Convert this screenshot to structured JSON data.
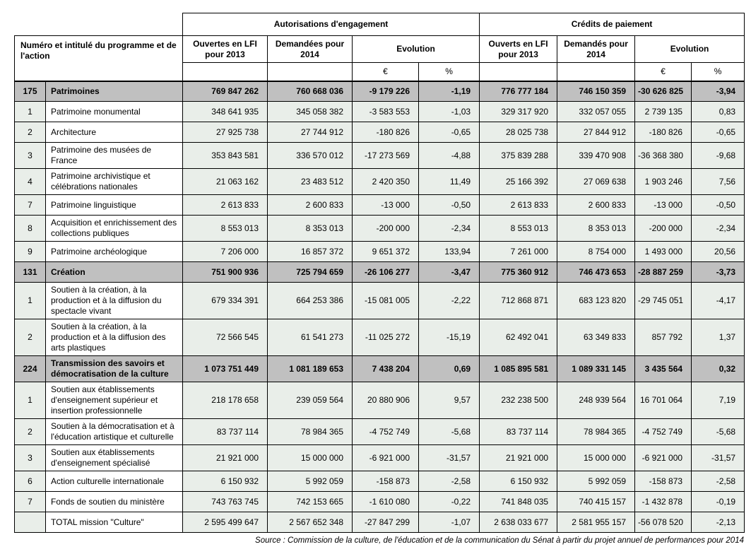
{
  "table": {
    "header": {
      "program_col": "Numéro et intitulé du programme et de l'action",
      "group_ae": "Autorisations d'engagement",
      "group_cp": "Crédits de paiement",
      "ae_lfi": "Ouvertes en LFI pour 2013",
      "ae_dem": "Demandées pour 2014",
      "ae_evo": "Evolution",
      "cp_lfi": "Ouverts en LFI pour 2013",
      "cp_dem": "Demandés pour 2014",
      "cp_evo": "Evolution",
      "euro": "€",
      "percent": "%"
    },
    "colors": {
      "program_row_bg": "#c0c0c0",
      "value_cell_bg": "#e9eee9",
      "border": "#000000"
    },
    "rows": [
      {
        "num": "175",
        "label": "Patrimoines",
        "type": "program",
        "values": [
          "769 847 262",
          "760 668 036",
          "-9 179 226",
          "-1,19",
          "776 777 184",
          "746 150 359",
          "-30 626 825",
          "-3,94"
        ]
      },
      {
        "num": "1",
        "label": "Patrimoine monumental",
        "type": "action",
        "values": [
          "348 641 935",
          "345 058 382",
          "-3 583 553",
          "-1,03",
          "329 317 920",
          "332 057 055",
          "2 739 135",
          "0,83"
        ]
      },
      {
        "num": "2",
        "label": "Architecture",
        "type": "action",
        "values": [
          "27 925 738",
          "27 744 912",
          "-180 826",
          "-0,65",
          "28 025 738",
          "27 844 912",
          "-180 826",
          "-0,65"
        ]
      },
      {
        "num": "3",
        "label": "Patrimoine des musées de France",
        "type": "action",
        "values": [
          "353 843 581",
          "336 570 012",
          "-17 273 569",
          "-4,88",
          "375 839 288",
          "339 470 908",
          "-36 368 380",
          "-9,68"
        ]
      },
      {
        "num": "4",
        "label": "Patrimoine archivistique et célébrations nationales",
        "type": "action",
        "values": [
          "21 063 162",
          "23 483 512",
          "2 420 350",
          "11,49",
          "25 166 392",
          "27 069 638",
          "1 903 246",
          "7,56"
        ]
      },
      {
        "num": "7",
        "label": "Patrimoine linguistique",
        "type": "action",
        "values": [
          "2 613 833",
          "2 600 833",
          "-13 000",
          "-0,50",
          "2 613 833",
          "2 600 833",
          "-13 000",
          "-0,50"
        ]
      },
      {
        "num": "8",
        "label": "Acquisition et enrichissement des collections publiques",
        "type": "action",
        "values": [
          "8 553 013",
          "8 353 013",
          "-200 000",
          "-2,34",
          "8 553 013",
          "8 353 013",
          "-200 000",
          "-2,34"
        ]
      },
      {
        "num": "9",
        "label": "Patrimoine archéologique",
        "type": "action",
        "values": [
          "7 206 000",
          "16 857 372",
          "9 651 372",
          "133,94",
          "7 261 000",
          "8 754 000",
          "1 493 000",
          "20,56"
        ]
      },
      {
        "num": "131",
        "label": "Création",
        "type": "program",
        "values": [
          "751 900 936",
          "725 794 659",
          "-26 106 277",
          "-3,47",
          "775 360 912",
          "746 473 653",
          "-28 887 259",
          "-3,73"
        ]
      },
      {
        "num": "1",
        "label": "Soutien à la création, à la production et à la diffusion du spectacle vivant",
        "type": "action",
        "values": [
          "679 334 391",
          "664 253 386",
          "-15 081 005",
          "-2,22",
          "712 868 871",
          "683 123 820",
          "-29 745 051",
          "-4,17"
        ]
      },
      {
        "num": "2",
        "label": "Soutien à la création, à la production et à la diffusion des arts plastiques",
        "type": "action",
        "values": [
          "72 566 545",
          "61 541 273",
          "-11 025 272",
          "-15,19",
          "62 492 041",
          "63 349 833",
          "857 792",
          "1,37"
        ]
      },
      {
        "num": "224",
        "label": "Transmission des savoirs et démocratisation de la culture",
        "type": "program",
        "values": [
          "1 073 751 449",
          "1 081 189 653",
          "7 438 204",
          "0,69",
          "1 085 895 581",
          "1 089 331 145",
          "3 435 564",
          "0,32"
        ]
      },
      {
        "num": "1",
        "label": "Soutien aux établissements d'enseignement supérieur et insertion professionnelle",
        "type": "action",
        "values": [
          "218 178 658",
          "239 059 564",
          "20 880 906",
          "9,57",
          "232 238 500",
          "248 939 564",
          "16 701 064",
          "7,19"
        ]
      },
      {
        "num": "2",
        "label": "Soutien à la démocratisation et à l'éducation artistique et culturelle",
        "type": "action",
        "values": [
          "83 737 114",
          "78 984 365",
          "-4 752 749",
          "-5,68",
          "83 737 114",
          "78 984 365",
          "-4 752 749",
          "-5,68"
        ]
      },
      {
        "num": "3",
        "label": "Soutien aux établissements d'enseignement spécialisé",
        "type": "action",
        "values": [
          "21 921 000",
          "15 000 000",
          "-6 921 000",
          "-31,57",
          "21 921 000",
          "15 000 000",
          "-6 921 000",
          "-31,57"
        ]
      },
      {
        "num": "6",
        "label": "Action culturelle internationale",
        "type": "action",
        "values": [
          "6 150 932",
          "5 992 059",
          "-158 873",
          "-2,58",
          "6 150 932",
          "5 992 059",
          "-158 873",
          "-2,58"
        ]
      },
      {
        "num": "7",
        "label": "Fonds de soutien du ministère",
        "type": "action",
        "values": [
          "743 763 745",
          "742 153 665",
          "-1 610 080",
          "-0,22",
          "741 848 035",
          "740 415 157",
          "-1 432 878",
          "-0,19"
        ]
      },
      {
        "num": "",
        "label": "TOTAL mission \"Culture\"",
        "type": "total",
        "values": [
          "2 595 499 647",
          "2 567 652 348",
          "-27 847 299",
          "-1,07",
          "2 638 033 677",
          "2 581 955 157",
          "-56 078 520",
          "-2,13"
        ]
      }
    ],
    "source": "Source : Commission de la culture, de l'éducation et de la communication  du Sénat à partir du projet annuel de performances  pour 2014"
  }
}
